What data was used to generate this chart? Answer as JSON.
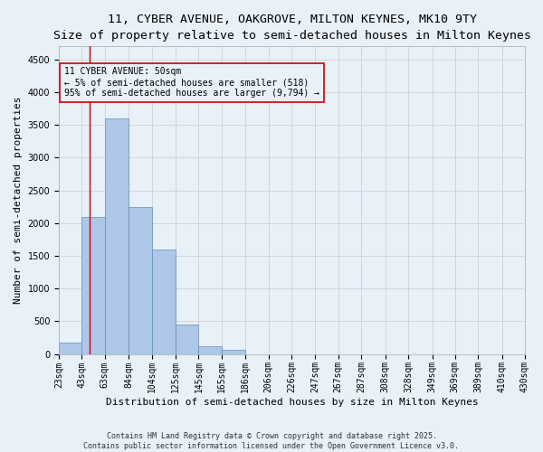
{
  "title_line1": "11, CYBER AVENUE, OAKGROVE, MILTON KEYNES, MK10 9TY",
  "title_line2": "Size of property relative to semi-detached houses in Milton Keynes",
  "xlabel": "Distribution of semi-detached houses by size in Milton Keynes",
  "ylabel": "Number of semi-detached properties",
  "categories": [
    "23sqm",
    "43sqm",
    "63sqm",
    "84sqm",
    "104sqm",
    "125sqm",
    "145sqm",
    "165sqm",
    "186sqm",
    "206sqm",
    "226sqm",
    "247sqm",
    "267sqm",
    "287sqm",
    "308sqm",
    "328sqm",
    "349sqm",
    "369sqm",
    "389sqm",
    "410sqm",
    "430sqm"
  ],
  "bar_lefts": [
    23,
    43,
    63,
    84,
    104,
    125,
    145,
    165,
    186,
    206,
    226,
    247,
    267,
    287,
    308,
    328,
    349,
    369,
    389,
    410
  ],
  "bar_widths": [
    20,
    20,
    21,
    20,
    21,
    20,
    20,
    21,
    20,
    20,
    21,
    20,
    20,
    21,
    20,
    21,
    20,
    20,
    21,
    20
  ],
  "bar_heights": [
    170,
    2100,
    3600,
    2250,
    1600,
    450,
    120,
    60,
    0,
    0,
    0,
    0,
    0,
    0,
    0,
    0,
    0,
    0,
    0,
    0
  ],
  "bar_color": "#aec6e8",
  "bar_edge_color": "#6090c0",
  "grid_color": "#cccccc",
  "bg_color": "#e8f0f8",
  "vline_x": 50,
  "vline_color": "#cc0000",
  "ylim": [
    0,
    4700
  ],
  "yticks": [
    0,
    500,
    1000,
    1500,
    2000,
    2500,
    3000,
    3500,
    4000,
    4500
  ],
  "annotation_text": "11 CYBER AVENUE: 50sqm\n← 5% of semi-detached houses are smaller (518)\n95% of semi-detached houses are larger (9,794) →",
  "footer_text": "Contains HM Land Registry data © Crown copyright and database right 2025.\nContains public sector information licensed under the Open Government Licence v3.0.",
  "title_fontsize": 9.5,
  "subtitle_fontsize": 8.5,
  "annotation_fontsize": 7.0,
  "axis_label_fontsize": 8.0,
  "tick_fontsize": 7.0,
  "footer_fontsize": 6.0
}
